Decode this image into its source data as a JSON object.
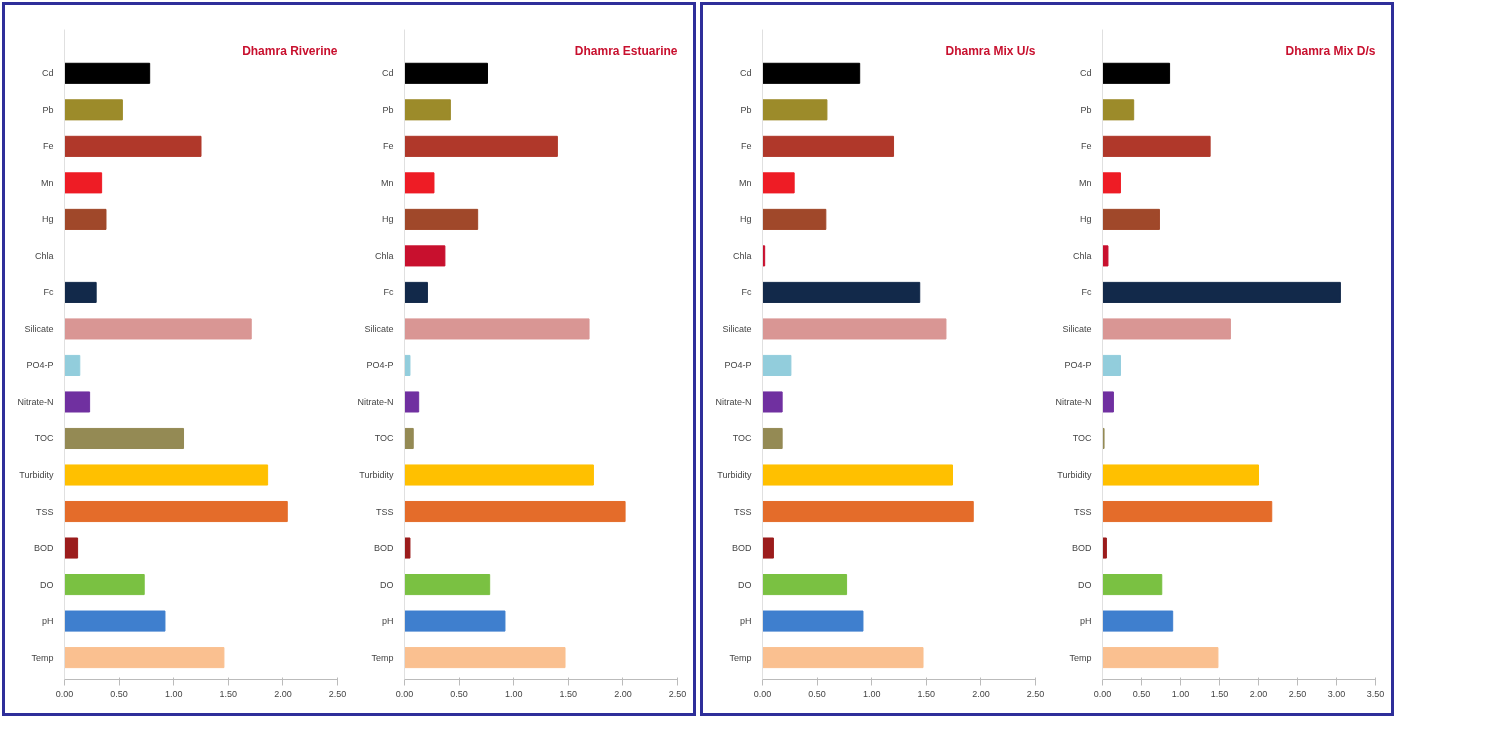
{
  "chart_data": [
    {
      "type": "bar",
      "orientation": "horizontal",
      "title": "Dhamra Riverine",
      "categories": [
        "Cd",
        "Pb",
        "Fe",
        "Mn",
        "Hg",
        "Chla",
        "Fc",
        "Silicate",
        "PO4-P",
        "Nitrate-N",
        "TOC",
        "Turbidity",
        "TSS",
        "BOD",
        "DO",
        "pH",
        "Temp"
      ],
      "values": [
        0.78,
        0.53,
        1.25,
        0.34,
        0.38,
        0,
        0.29,
        1.71,
        0.14,
        0.23,
        1.09,
        1.86,
        2.04,
        0.12,
        0.73,
        0.92,
        1.46
      ],
      "colors": [
        "#000000",
        "#9c8b2a",
        "#b0382a",
        "#ee1c25",
        "#a0482a",
        "#c8102e",
        "#12294a",
        "#d99694",
        "#92cddc",
        "#7030a0",
        "#948a54",
        "#ffc000",
        "#e46c2a",
        "#9b1c1c",
        "#7ac142",
        "#3f7fce",
        "#fac090"
      ],
      "xlim": [
        0,
        2.5
      ],
      "xticks": [
        {
          "value": 0,
          "label": "0.00"
        },
        {
          "value": 0.5,
          "label": "0.50"
        },
        {
          "value": 1,
          "label": "1.00"
        },
        {
          "value": 1.5,
          "label": "1.50"
        },
        {
          "value": 2,
          "label": "2.00"
        },
        {
          "value": 2.5,
          "label": "2.50"
        }
      ],
      "grid": false
    },
    {
      "type": "bar",
      "orientation": "horizontal",
      "title": "Dhamra Estuarine",
      "categories": [
        "Cd",
        "Pb",
        "Fe",
        "Mn",
        "Hg",
        "Chla",
        "Fc",
        "Silicate",
        "PO4-P",
        "Nitrate-N",
        "TOC",
        "Turbidity",
        "TSS",
        "BOD",
        "DO",
        "pH",
        "Temp"
      ],
      "values": [
        0.76,
        0.42,
        1.4,
        0.27,
        0.67,
        0.37,
        0.21,
        1.69,
        0.05,
        0.13,
        0.08,
        1.73,
        2.02,
        0.05,
        0.78,
        0.92,
        1.47
      ],
      "colors": [
        "#000000",
        "#9c8b2a",
        "#b0382a",
        "#ee1c25",
        "#a0482a",
        "#c8102e",
        "#12294a",
        "#d99694",
        "#92cddc",
        "#7030a0",
        "#948a54",
        "#ffc000",
        "#e46c2a",
        "#9b1c1c",
        "#7ac142",
        "#3f7fce",
        "#fac090"
      ],
      "xlim": [
        0,
        2.5
      ],
      "xticks": [
        {
          "value": 0,
          "label": "0.00"
        },
        {
          "value": 0.5,
          "label": "0.50"
        },
        {
          "value": 1,
          "label": "1.00"
        },
        {
          "value": 1.5,
          "label": "1.50"
        },
        {
          "value": 2,
          "label": "2.00"
        },
        {
          "value": 2.5,
          "label": "2.50"
        }
      ],
      "grid": false
    },
    {
      "type": "bar",
      "orientation": "horizontal",
      "title": "Dhamra Mix U/s",
      "categories": [
        "Cd",
        "Pb",
        "Fe",
        "Mn",
        "Hg",
        "Chla",
        "Fc",
        "Silicate",
        "PO4-P",
        "Nitrate-N",
        "TOC",
        "Turbidity",
        "TSS",
        "BOD",
        "DO",
        "pH",
        "Temp"
      ],
      "values": [
        0.89,
        0.59,
        1.2,
        0.29,
        0.58,
        0.02,
        1.44,
        1.68,
        0.26,
        0.18,
        0.18,
        1.74,
        1.93,
        0.1,
        0.77,
        0.92,
        1.47
      ],
      "colors": [
        "#000000",
        "#9c8b2a",
        "#b0382a",
        "#ee1c25",
        "#a0482a",
        "#c8102e",
        "#12294a",
        "#d99694",
        "#92cddc",
        "#7030a0",
        "#948a54",
        "#ffc000",
        "#e46c2a",
        "#9b1c1c",
        "#7ac142",
        "#3f7fce",
        "#fac090"
      ],
      "xlim": [
        0,
        2.5
      ],
      "xticks": [
        {
          "value": 0,
          "label": "0.00"
        },
        {
          "value": 0.5,
          "label": "0.50"
        },
        {
          "value": 1,
          "label": "1.00"
        },
        {
          "value": 1.5,
          "label": "1.50"
        },
        {
          "value": 2,
          "label": "2.00"
        },
        {
          "value": 2.5,
          "label": "2.50"
        }
      ],
      "grid": false
    },
    {
      "type": "bar",
      "orientation": "horizontal",
      "title": "Dhamra Mix D/s",
      "categories": [
        "Cd",
        "Pb",
        "Fe",
        "Mn",
        "Hg",
        "Chla",
        "Fc",
        "Silicate",
        "PO4-P",
        "Nitrate-N",
        "TOC",
        "Turbidity",
        "TSS",
        "BOD",
        "DO",
        "pH",
        "Temp"
      ],
      "values": [
        0.86,
        0.4,
        1.38,
        0.23,
        0.73,
        0.07,
        3.05,
        1.64,
        0.23,
        0.14,
        0.02,
        2.0,
        2.17,
        0.05,
        0.76,
        0.9,
        1.48
      ],
      "colors": [
        "#000000",
        "#9c8b2a",
        "#b0382a",
        "#ee1c25",
        "#a0482a",
        "#c8102e",
        "#12294a",
        "#d99694",
        "#92cddc",
        "#7030a0",
        "#948a54",
        "#ffc000",
        "#e46c2a",
        "#9b1c1c",
        "#7ac142",
        "#3f7fce",
        "#fac090"
      ],
      "xlim": [
        0,
        3.5
      ],
      "xticks": [
        {
          "value": 0,
          "label": "0.00"
        },
        {
          "value": 0.5,
          "label": "0.50"
        },
        {
          "value": 1,
          "label": "1.00"
        },
        {
          "value": 1.5,
          "label": "1.50"
        },
        {
          "value": 2,
          "label": "2.00"
        },
        {
          "value": 2.5,
          "label": "2.50"
        },
        {
          "value": 3,
          "label": "3.00"
        },
        {
          "value": 3.5,
          "label": "3.50"
        }
      ],
      "grid": false
    }
  ]
}
